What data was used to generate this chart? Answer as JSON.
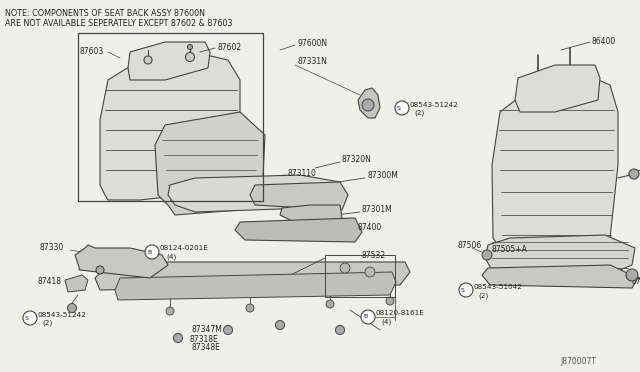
{
  "bg_color": "#f0f0eb",
  "line_color": "#444444",
  "text_color": "#222222",
  "note_line1": "NOTE: COMPONENTS OF SEAT BACK ASSY 87600N",
  "note_line2": "ARE NOT AVAILABLE SEPERATELY EXCEPT 87602 & 87603",
  "diagram_id": "J870007T",
  "figsize": [
    6.4,
    3.72
  ],
  "dpi": 100,
  "xlim": [
    0,
    640
  ],
  "ylim": [
    372,
    0
  ]
}
